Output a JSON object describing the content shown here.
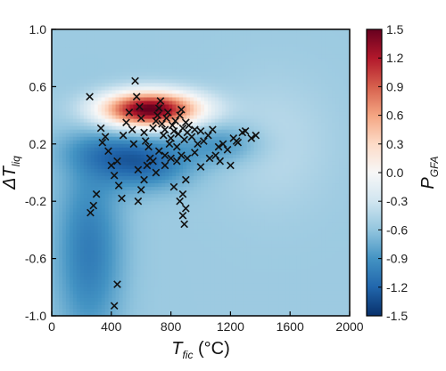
{
  "chart_data": {
    "type": "heatmap",
    "x_axis": {
      "label_main": "T",
      "label_sub": "fic",
      "label_unit": " (°C)",
      "range": [
        0,
        2000
      ],
      "ticks": [
        "0",
        "400",
        "800",
        "1200",
        "1600",
        "2000"
      ],
      "tick_values": [
        0,
        400,
        800,
        1200,
        1600,
        2000
      ]
    },
    "y_axis": {
      "label_main": "ΔT",
      "label_sub": "liq",
      "range": [
        -1.0,
        1.0
      ],
      "ticks": [
        "1.0",
        "0.6",
        "0.2",
        "-0.2",
        "-0.6",
        "-1.0"
      ],
      "tick_values": [
        1.0,
        0.6,
        0.2,
        -0.2,
        -0.6,
        -1.0
      ]
    },
    "colorbar": {
      "label_main": "P",
      "label_sub": "GFA",
      "range": [
        -1.5,
        1.5
      ],
      "ticks": [
        "1.5",
        "1.2",
        "0.9",
        "0.6",
        "0.3",
        "0.0",
        "-0.3",
        "-0.6",
        "-0.9",
        "-1.2",
        "-1.5"
      ],
      "tick_values": [
        1.5,
        1.2,
        0.9,
        0.6,
        0.3,
        0.0,
        -0.3,
        -0.6,
        -0.9,
        -1.2,
        -1.5
      ],
      "colormap": [
        "#08306b",
        "#2166ac",
        "#4393c3",
        "#92c5de",
        "#d1e5f0",
        "#f7f7f7",
        "#fddbc7",
        "#f4a582",
        "#d6604d",
        "#b2182b",
        "#67001f"
      ]
    },
    "field": {
      "background": -0.55,
      "blobs": [
        {
          "x": 660,
          "y": 0.44,
          "sx": 230,
          "sy": 0.085,
          "a": 2.1
        },
        {
          "x": 620,
          "y": 0.05,
          "sx": 220,
          "sy": 0.12,
          "a": -0.55
        },
        {
          "x": 250,
          "y": -0.55,
          "sx": 160,
          "sy": 0.45,
          "a": -0.5
        },
        {
          "x": 1150,
          "y": 0.2,
          "sx": 200,
          "sy": 0.1,
          "a": -0.35
        },
        {
          "x": 400,
          "y": 0.15,
          "sx": 250,
          "sy": 0.1,
          "a": -0.3
        },
        {
          "x": 1500,
          "y": 0.2,
          "sx": 250,
          "sy": 0.3,
          "a": 0.15
        }
      ]
    },
    "series": [
      {
        "marker": "x",
        "points": [
          [
            255,
            0.53
          ],
          [
            260,
            -0.28
          ],
          [
            280,
            -0.23
          ],
          [
            300,
            -0.15
          ],
          [
            330,
            0.31
          ],
          [
            340,
            0.21
          ],
          [
            360,
            0.25
          ],
          [
            380,
            0.15
          ],
          [
            400,
            0.05
          ],
          [
            420,
            -0.02
          ],
          [
            440,
            0.08
          ],
          [
            450,
            -0.09
          ],
          [
            470,
            -0.18
          ],
          [
            480,
            0.26
          ],
          [
            500,
            0.35
          ],
          [
            520,
            0.42
          ],
          [
            540,
            0.3
          ],
          [
            550,
            0.2
          ],
          [
            560,
            0.64
          ],
          [
            570,
            0.53
          ],
          [
            590,
            0.46
          ],
          [
            600,
            0.38
          ],
          [
            620,
            0.28
          ],
          [
            630,
            0.22
          ],
          [
            650,
            0.18
          ],
          [
            660,
            0.1
          ],
          [
            680,
            0.31
          ],
          [
            700,
            0.36
          ],
          [
            710,
            0.4
          ],
          [
            720,
            0.45
          ],
          [
            730,
            0.5
          ],
          [
            740,
            0.34
          ],
          [
            750,
            0.26
          ],
          [
            760,
            0.3
          ],
          [
            770,
            0.38
          ],
          [
            780,
            0.42
          ],
          [
            790,
            0.2
          ],
          [
            800,
            0.24
          ],
          [
            810,
            0.33
          ],
          [
            820,
            0.29
          ],
          [
            830,
            0.36
          ],
          [
            840,
            0.18
          ],
          [
            850,
            0.27
          ],
          [
            860,
            0.4
          ],
          [
            870,
            0.44
          ],
          [
            880,
            0.31
          ],
          [
            890,
            0.23
          ],
          [
            900,
            0.35
          ],
          [
            910,
            0.28
          ],
          [
            920,
            0.33
          ],
          [
            940,
            0.25
          ],
          [
            960,
            0.3
          ],
          [
            980,
            0.2
          ],
          [
            1000,
            0.29
          ],
          [
            1020,
            0.22
          ],
          [
            1050,
            0.26
          ],
          [
            1080,
            0.3
          ],
          [
            1100,
            0.12
          ],
          [
            1120,
            0.18
          ],
          [
            1150,
            0.2
          ],
          [
            1180,
            0.16
          ],
          [
            1220,
            0.24
          ],
          [
            1250,
            0.21
          ],
          [
            1300,
            0.29
          ],
          [
            1340,
            0.24
          ],
          [
            1370,
            0.26
          ],
          [
            440,
            -0.78
          ],
          [
            420,
            -0.93
          ],
          [
            580,
            0.02
          ],
          [
            620,
            -0.05
          ],
          [
            700,
            0.0
          ],
          [
            760,
            0.05
          ],
          [
            820,
            -0.1
          ],
          [
            860,
            -0.2
          ],
          [
            880,
            -0.3
          ],
          [
            890,
            -0.36
          ],
          [
            900,
            -0.25
          ],
          [
            880,
            -0.15
          ],
          [
            900,
            -0.05
          ],
          [
            910,
            0.1
          ],
          [
            870,
            0.12
          ],
          [
            640,
            0.05
          ],
          [
            600,
            -0.12
          ],
          [
            580,
            -0.2
          ],
          [
            720,
            0.15
          ],
          [
            760,
            0.12
          ],
          [
            680,
            0.08
          ],
          [
            800,
            0.1
          ],
          [
            840,
            0.08
          ],
          [
            960,
            0.14
          ],
          [
            1000,
            0.04
          ],
          [
            1060,
            0.1
          ],
          [
            1130,
            0.08
          ],
          [
            1200,
            0.05
          ],
          [
            1240,
            0.22
          ],
          [
            1280,
            0.28
          ]
        ]
      }
    ]
  }
}
